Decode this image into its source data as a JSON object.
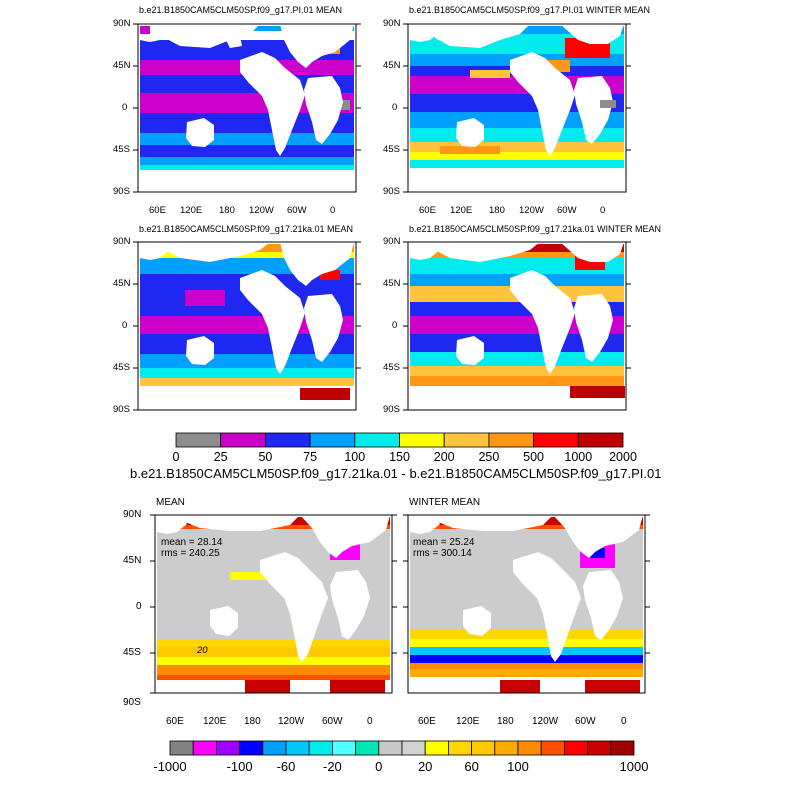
{
  "top_titles": {
    "p1": "b.e21.B1850CAM5CLM50SP.f09_g17.PI.01 MEAN",
    "p2": "b.e21.B1850CAM5CLM50SP.f09_g17.PI.01 WINTER MEAN",
    "p3": "b.e21.B1850CAM5CLM50SP.f09_g17.21ka.01 MEAN",
    "p4": "b.e21.B1850CAM5CLM50SP.f09_g17.21ka.01 WINTER MEAN"
  },
  "lat_labels": [
    "90N",
    "45N",
    "0",
    "45S",
    "90S"
  ],
  "lon_labels": [
    "60E",
    "120E",
    "180",
    "120W",
    "60W",
    "0"
  ],
  "colorbar1": {
    "labels": [
      "0",
      "25",
      "50",
      "75",
      "100",
      "150",
      "200",
      "250",
      "500",
      "1000",
      "2000"
    ],
    "colors": [
      "#8c8c8c",
      "#c800c8",
      "#1e28f0",
      "#00a0ff",
      "#00ecec",
      "#ffff00",
      "#ffc33c",
      "#ff9614",
      "#ff0000",
      "#be0000"
    ]
  },
  "diff_title": "b.e21.B1850CAM5CLM50SP.f09_g17.21ka.01 - b.e21.B1850CAM5CLM50SP.f09_g17.PI.01",
  "bottom": {
    "left": {
      "label": "MEAN",
      "mean": "mean = 28.14",
      "rms": "rms = 240.25",
      "contour": "20"
    },
    "right": {
      "label": "WINTER MEAN",
      "mean": "mean = 25.24",
      "rms": "rms = 300.14"
    }
  },
  "colorbar2": {
    "labels": [
      "-1000",
      "-100",
      "-60",
      "-20",
      "0",
      "20",
      "60",
      "100",
      "1000"
    ],
    "colors": [
      "#828282",
      "#ff00ff",
      "#a000ff",
      "#0000ff",
      "#00a0ff",
      "#00c8ff",
      "#00ecec",
      "#50ffff",
      "#00e6b4",
      "#c8c8c8",
      "#d2d2d2",
      "#ffff00",
      "#ffd700",
      "#ffc800",
      "#ffaa00",
      "#ff8c00",
      "#ff5000",
      "#ff0000",
      "#c80000",
      "#a00000"
    ]
  }
}
